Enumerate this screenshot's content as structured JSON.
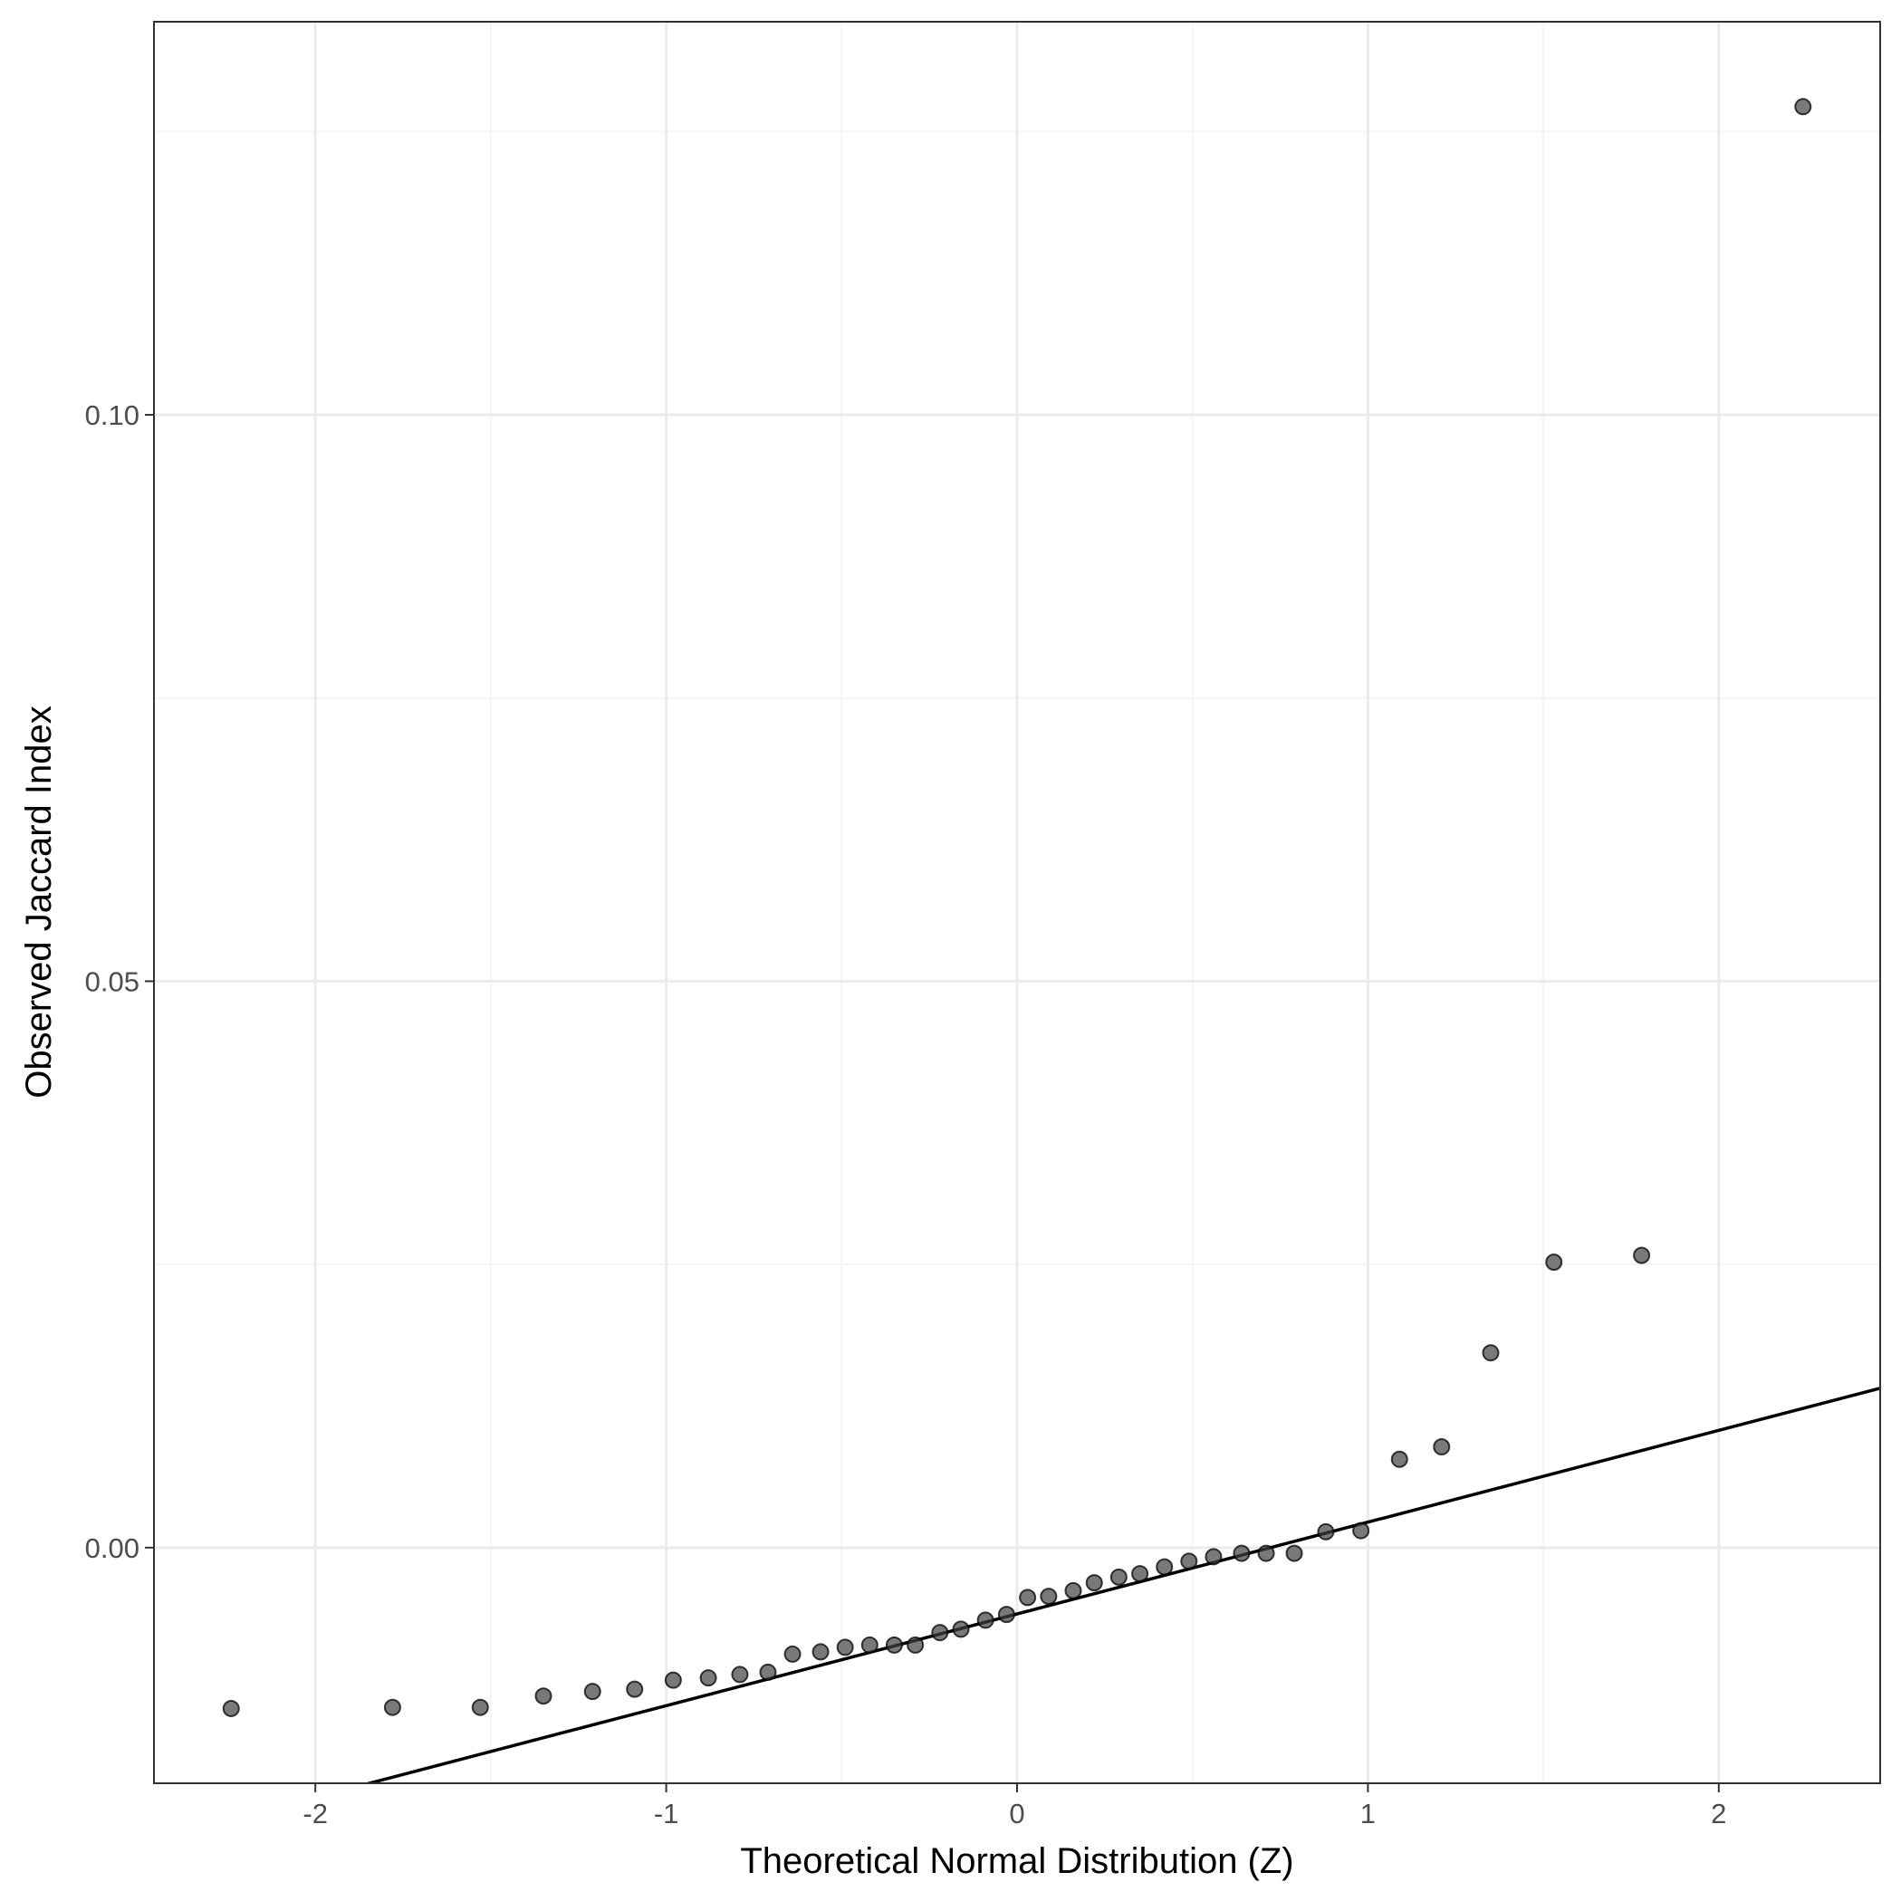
{
  "chart_data": {
    "type": "scatter",
    "title": "",
    "xlabel": "Theoretical Normal Distribution (Z)",
    "ylabel": "Observed Jaccard Index",
    "xlim": [
      -2.46,
      2.46
    ],
    "ylim": [
      -0.0208,
      0.1347
    ],
    "x_ticks": [
      {
        "value": -2,
        "label": "-2"
      },
      {
        "value": -1,
        "label": "-1"
      },
      {
        "value": 0,
        "label": "0"
      },
      {
        "value": 1,
        "label": "1"
      },
      {
        "value": 2,
        "label": "2"
      }
    ],
    "x_minor_ticks": [
      -1.5,
      -0.5,
      0.5,
      1.5
    ],
    "y_ticks": [
      {
        "value": 0.0,
        "label": "0.00"
      },
      {
        "value": 0.05,
        "label": "0.05"
      },
      {
        "value": 0.1,
        "label": "0.10"
      }
    ],
    "y_minor_ticks": [
      0.025,
      0.075,
      0.125
    ],
    "grid": true,
    "point_color": "#404040",
    "point_alpha": 0.7,
    "line_color": "#000000",
    "reference_line": {
      "intercept": -0.00585,
      "slope": 0.0081
    },
    "points": {
      "x": [
        -2.24,
        -1.78,
        -1.53,
        -1.35,
        -1.21,
        -1.09,
        -0.98,
        -0.88,
        -0.79,
        -0.71,
        -0.64,
        -0.56,
        -0.49,
        -0.42,
        -0.35,
        -0.29,
        -0.22,
        -0.16,
        -0.09,
        -0.03,
        0.03,
        0.09,
        0.16,
        0.22,
        0.29,
        0.35,
        0.42,
        0.49,
        0.56,
        0.64,
        0.71,
        0.79,
        0.88,
        0.98,
        1.09,
        1.21,
        1.35,
        1.53,
        1.78,
        2.24
      ],
      "y": [
        -0.0142,
        -0.0141,
        -0.0141,
        -0.0131,
        -0.0127,
        -0.0125,
        -0.0117,
        -0.0115,
        -0.0112,
        -0.011,
        -0.0094,
        -0.0092,
        -0.0088,
        -0.0086,
        -0.0086,
        -0.0086,
        -0.0075,
        -0.0072,
        -0.0064,
        -0.0059,
        -0.0044,
        -0.0043,
        -0.0038,
        -0.0031,
        -0.0026,
        -0.0023,
        -0.0017,
        -0.0012,
        -0.0008,
        -0.0005,
        -0.0005,
        -0.0005,
        0.0014,
        0.0015,
        0.0078,
        0.0089,
        0.0172,
        0.0252,
        0.0258,
        0.1272
      ]
    }
  }
}
